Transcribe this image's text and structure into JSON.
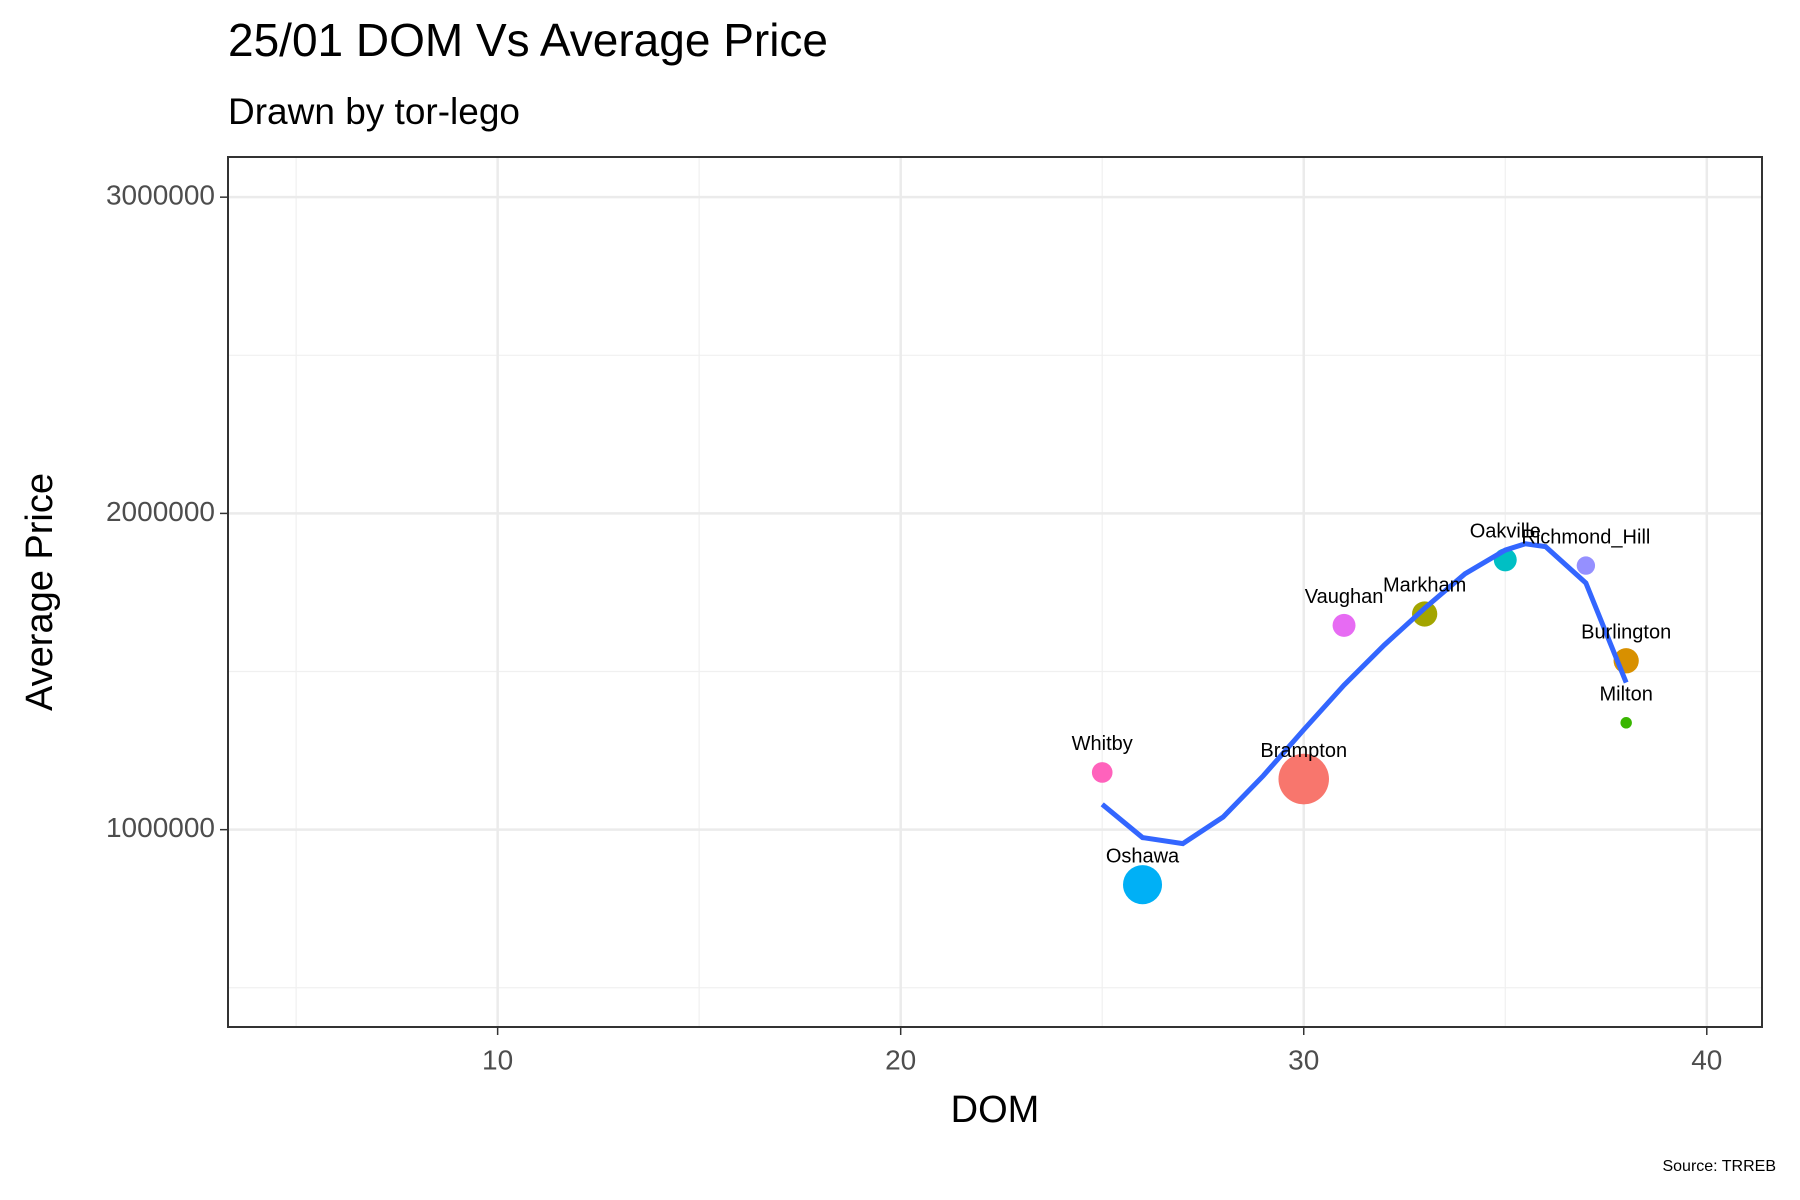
{
  "chart_data": {
    "type": "scatter",
    "title": "25/01 DOM Vs Average Price",
    "subtitle": "Drawn by tor-lego",
    "x_label": "DOM",
    "y_label": "Average Price",
    "caption": "Source: TRREB",
    "labels": [
      "Whitby",
      "Oshawa",
      "Brampton",
      "Vaughan",
      "Markham",
      "Oakville",
      "Richmond_Hill",
      "Burlington",
      "Milton"
    ],
    "x": [
      25,
      26,
      30,
      31,
      33,
      35,
      37,
      38,
      38
    ],
    "y": [
      1181000,
      826000,
      1160000,
      1646000,
      1682000,
      1853000,
      1835000,
      1534000,
      1338000
    ],
    "sizes": [
      81,
      289,
      484,
      100,
      121,
      100,
      64,
      121,
      25
    ],
    "colors": [
      "#FF62BC",
      "#00B0F6",
      "#F8766D",
      "#E76BF3",
      "#A3A500",
      "#00BFC4",
      "#9590FF",
      "#D89000",
      "#39B600"
    ],
    "trend": {
      "color": "#3366FF",
      "x": [
        25,
        26,
        27,
        28,
        29,
        30,
        31,
        32,
        33,
        34,
        35,
        35.5,
        36,
        37,
        38
      ],
      "y": [
        1080000,
        975000,
        956000,
        1040000,
        1171000,
        1316000,
        1457000,
        1584000,
        1700000,
        1809000,
        1884000,
        1904000,
        1895000,
        1780000,
        1465000
      ]
    },
    "xlim": [
      3.31,
      41.37
    ],
    "xticks": [
      10,
      20,
      30,
      40
    ],
    "xminor": [
      5,
      15,
      25,
      35
    ],
    "ylim": [
      376000,
      3127000
    ],
    "yticks": [
      1000000,
      2000000,
      3000000
    ],
    "yminor": [
      500000,
      1500000,
      2500000
    ],
    "grid": true
  }
}
